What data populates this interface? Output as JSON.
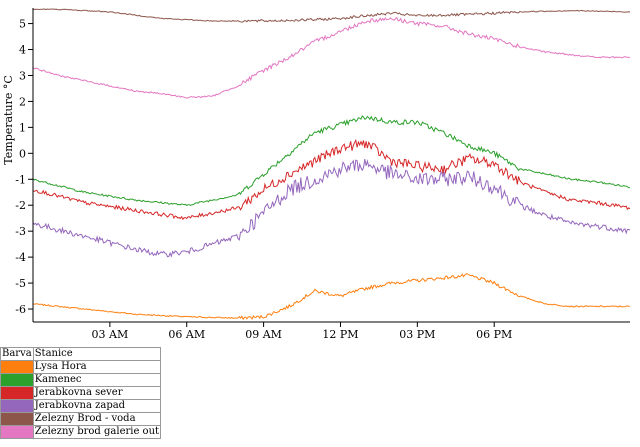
{
  "chart_data": {
    "type": "line",
    "ylabel": "Temperature °C",
    "ylim": [
      -6.5,
      5.6
    ],
    "yticks": [
      -6,
      -5,
      -4,
      -3,
      -2,
      -1,
      0,
      1,
      2,
      3,
      4,
      5
    ],
    "xlim": [
      0,
      23.3
    ],
    "xticks": [
      {
        "hour": 3,
        "label": "03 AM"
      },
      {
        "hour": 6,
        "label": "06 AM"
      },
      {
        "hour": 9,
        "label": "09 AM"
      },
      {
        "hour": 12,
        "label": "12 PM"
      },
      {
        "hour": 15,
        "label": "03 PM"
      },
      {
        "hour": 18,
        "label": "06 PM"
      }
    ],
    "legend_header": {
      "color": "Barva",
      "station": "Stanice"
    },
    "series": [
      {
        "name": "Lysa Hora",
        "color": "#ff7f0e",
        "points": [
          [
            0,
            -5.8
          ],
          [
            2,
            -6.0
          ],
          [
            4,
            -6.2
          ],
          [
            6,
            -6.3
          ],
          [
            8,
            -6.35
          ],
          [
            9,
            -6.3
          ],
          [
            10,
            -5.9
          ],
          [
            11,
            -5.3
          ],
          [
            12,
            -5.5
          ],
          [
            13,
            -5.2
          ],
          [
            14,
            -5.0
          ],
          [
            15,
            -4.9
          ],
          [
            16,
            -4.8
          ],
          [
            17,
            -4.7
          ],
          [
            18,
            -5.0
          ],
          [
            19,
            -5.5
          ],
          [
            20,
            -5.8
          ],
          [
            21,
            -5.9
          ],
          [
            22,
            -5.9
          ],
          [
            23.3,
            -5.9
          ]
        ]
      },
      {
        "name": "Kamenec",
        "color": "#2ca02c",
        "points": [
          [
            0,
            -1.0
          ],
          [
            2,
            -1.5
          ],
          [
            4,
            -1.8
          ],
          [
            6,
            -2.0
          ],
          [
            8,
            -1.6
          ],
          [
            9,
            -0.8
          ],
          [
            10,
            0.0
          ],
          [
            11,
            0.8
          ],
          [
            12,
            1.1
          ],
          [
            13,
            1.4
          ],
          [
            14,
            1.2
          ],
          [
            15,
            1.2
          ],
          [
            16,
            0.8
          ],
          [
            17,
            0.3
          ],
          [
            18,
            0.0
          ],
          [
            19,
            -0.6
          ],
          [
            20,
            -0.8
          ],
          [
            21,
            -1.0
          ],
          [
            22,
            -1.1
          ],
          [
            23.3,
            -1.3
          ]
        ]
      },
      {
        "name": "Jerabkovna sever",
        "color": "#d62728",
        "points": [
          [
            0,
            -1.4
          ],
          [
            2,
            -1.9
          ],
          [
            4,
            -2.2
          ],
          [
            6,
            -2.5
          ],
          [
            8,
            -2.1
          ],
          [
            9,
            -1.4
          ],
          [
            10,
            -0.8
          ],
          [
            11,
            -0.3
          ],
          [
            12,
            0.2
          ],
          [
            13,
            0.4
          ],
          [
            14,
            -0.3
          ],
          [
            15,
            -0.5
          ],
          [
            16,
            -0.6
          ],
          [
            17,
            -0.2
          ],
          [
            18,
            -0.4
          ],
          [
            19,
            -1.1
          ],
          [
            20,
            -1.5
          ],
          [
            21,
            -1.8
          ],
          [
            22,
            -1.9
          ],
          [
            23.3,
            -2.1
          ]
        ]
      },
      {
        "name": "Jerabkovna zapad",
        "color": "#9467bd",
        "points": [
          [
            0,
            -2.7
          ],
          [
            2,
            -3.2
          ],
          [
            4,
            -3.7
          ],
          [
            5,
            -3.9
          ],
          [
            6,
            -3.8
          ],
          [
            8,
            -3.2
          ],
          [
            9,
            -2.3
          ],
          [
            10,
            -1.4
          ],
          [
            11,
            -1.0
          ],
          [
            12,
            -0.6
          ],
          [
            13,
            -0.4
          ],
          [
            14,
            -0.8
          ],
          [
            15,
            -1.0
          ],
          [
            16,
            -1.0
          ],
          [
            17,
            -0.9
          ],
          [
            18,
            -1.3
          ],
          [
            19,
            -2.0
          ],
          [
            20,
            -2.4
          ],
          [
            21,
            -2.7
          ],
          [
            22,
            -2.8
          ],
          [
            23.3,
            -3.0
          ]
        ]
      },
      {
        "name": "Zelezny Brod - voda",
        "color": "#8c564b",
        "points": [
          [
            0,
            5.55
          ],
          [
            1,
            5.55
          ],
          [
            3,
            5.45
          ],
          [
            5,
            5.2
          ],
          [
            7,
            5.1
          ],
          [
            9,
            5.1
          ],
          [
            11,
            5.15
          ],
          [
            12,
            5.2
          ],
          [
            13,
            5.3
          ],
          [
            14,
            5.4
          ],
          [
            15,
            5.3
          ],
          [
            17,
            5.35
          ],
          [
            19,
            5.45
          ],
          [
            21,
            5.5
          ],
          [
            23.3,
            5.45
          ]
        ]
      },
      {
        "name": "Zelezny brod galerie out",
        "color": "#e377c2",
        "points": [
          [
            0,
            3.3
          ],
          [
            1,
            3.0
          ],
          [
            2,
            2.8
          ],
          [
            3,
            2.6
          ],
          [
            4,
            2.4
          ],
          [
            5,
            2.3
          ],
          [
            6,
            2.15
          ],
          [
            7,
            2.2
          ],
          [
            8,
            2.6
          ],
          [
            9,
            3.2
          ],
          [
            10,
            3.7
          ],
          [
            11,
            4.3
          ],
          [
            12,
            4.7
          ],
          [
            13,
            5.1
          ],
          [
            14,
            5.2
          ],
          [
            15,
            5.0
          ],
          [
            16,
            4.9
          ],
          [
            17,
            4.6
          ],
          [
            18,
            4.4
          ],
          [
            19,
            4.1
          ],
          [
            20,
            3.9
          ],
          [
            21,
            3.8
          ],
          [
            22,
            3.7
          ],
          [
            23.3,
            3.7
          ]
        ]
      }
    ]
  }
}
